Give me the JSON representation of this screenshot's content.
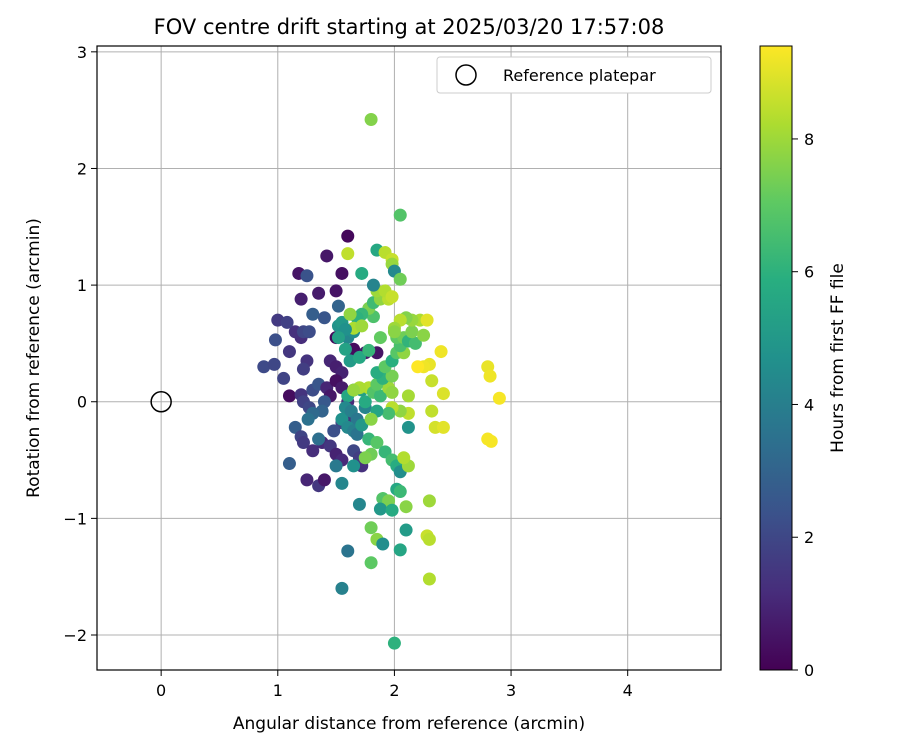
{
  "chart_data": {
    "type": "scatter",
    "title": "FOV centre drift starting at 2025/03/20 17:57:08",
    "xlabel": "Angular distance from reference (arcmin)",
    "ylabel": "Rotation from reference (arcmin)",
    "xlim": [
      -0.55,
      4.8
    ],
    "ylim": [
      -2.3,
      3.05
    ],
    "xticks": [
      0,
      1,
      2,
      3,
      4
    ],
    "yticks": [
      -2,
      -1,
      0,
      1,
      2,
      3
    ],
    "grid": true,
    "legend": {
      "position": "top-right",
      "entries": [
        "Reference platepar"
      ]
    },
    "reference_point": {
      "label": "Reference platepar",
      "x": 0,
      "y": 0
    },
    "colorbar": {
      "label": "Hours from first FF file",
      "range": [
        0,
        9.4
      ],
      "ticks": [
        0,
        2,
        4,
        6,
        8
      ],
      "colormap": "viridis"
    },
    "points": [
      [
        1.6,
        1.42,
        0.2
      ],
      [
        1.42,
        1.25,
        0.6
      ],
      [
        1.55,
        1.1,
        0.4
      ],
      [
        1.18,
        1.1,
        0.5
      ],
      [
        1.2,
        0.88,
        0.8
      ],
      [
        1.35,
        0.93,
        0.7
      ],
      [
        1.5,
        0.95,
        0.5
      ],
      [
        1.25,
        1.08,
        2.4
      ],
      [
        1.55,
        0.65,
        0.4
      ],
      [
        1.5,
        0.55,
        0.2
      ],
      [
        1.65,
        0.45,
        0.3
      ],
      [
        1.2,
        0.55,
        1.2
      ],
      [
        1.1,
        0.43,
        1.5
      ],
      [
        1.15,
        0.6,
        1.3
      ],
      [
        1.0,
        0.7,
        1.6
      ],
      [
        1.08,
        0.68,
        1.8
      ],
      [
        1.22,
        0.6,
        2.0
      ],
      [
        1.27,
        0.6,
        2.2
      ],
      [
        0.98,
        0.53,
        2.3
      ],
      [
        1.4,
        0.72,
        2.5
      ],
      [
        1.3,
        0.75,
        2.8
      ],
      [
        1.52,
        0.82,
        3.0
      ],
      [
        0.88,
        0.3,
        2.1
      ],
      [
        0.97,
        0.32,
        2.0
      ],
      [
        1.05,
        0.2,
        1.9
      ],
      [
        1.25,
        0.35,
        1.4
      ],
      [
        1.22,
        0.28,
        1.7
      ],
      [
        1.45,
        0.35,
        1.0
      ],
      [
        1.5,
        0.3,
        0.8
      ],
      [
        1.55,
        0.25,
        0.9
      ],
      [
        1.75,
        0.42,
        0.7
      ],
      [
        1.85,
        0.42,
        0.5
      ],
      [
        1.1,
        0.05,
        0.3
      ],
      [
        1.2,
        0.06,
        1.4
      ],
      [
        1.22,
        0.0,
        1.8
      ],
      [
        1.27,
        -0.05,
        2.0
      ],
      [
        1.3,
        0.1,
        2.2
      ],
      [
        1.35,
        0.15,
        2.5
      ],
      [
        1.42,
        0.12,
        1.0
      ],
      [
        1.45,
        0.05,
        0.6
      ],
      [
        1.5,
        0.18,
        0.4
      ],
      [
        1.55,
        0.12,
        0.7
      ],
      [
        1.6,
        0.0,
        1.1
      ],
      [
        1.62,
        -0.12,
        1.5
      ],
      [
        1.55,
        -0.18,
        1.9
      ],
      [
        1.48,
        -0.25,
        2.3
      ],
      [
        1.4,
        0.0,
        2.6
      ],
      [
        1.38,
        -0.08,
        3.0
      ],
      [
        1.3,
        -0.1,
        3.2
      ],
      [
        1.26,
        -0.15,
        3.5
      ],
      [
        1.15,
        -0.22,
        2.8
      ],
      [
        1.2,
        -0.3,
        1.9
      ],
      [
        1.22,
        -0.35,
        1.6
      ],
      [
        1.3,
        -0.42,
        1.2
      ],
      [
        1.38,
        -0.35,
        1.1
      ],
      [
        1.35,
        -0.32,
        3.4
      ],
      [
        1.45,
        -0.38,
        1.5
      ],
      [
        1.5,
        -0.45,
        0.9
      ],
      [
        1.55,
        -0.5,
        1.1
      ],
      [
        1.65,
        -0.42,
        2.0
      ],
      [
        1.7,
        -0.48,
        1.7
      ],
      [
        1.72,
        -0.55,
        1.3
      ],
      [
        1.1,
        -0.53,
        2.8
      ],
      [
        1.25,
        -0.67,
        1.0
      ],
      [
        1.35,
        -0.72,
        1.5
      ],
      [
        1.4,
        -0.67,
        0.6
      ],
      [
        1.5,
        -0.55,
        3.8
      ],
      [
        1.55,
        -0.7,
        4.3
      ],
      [
        1.65,
        -0.55,
        4.7
      ],
      [
        1.7,
        -0.88,
        4.3
      ],
      [
        1.6,
        -1.28,
        3.6
      ],
      [
        1.55,
        -1.6,
        4.1
      ],
      [
        1.52,
        0.65,
        4.8
      ],
      [
        1.55,
        0.68,
        5.0
      ],
      [
        1.6,
        0.55,
        4.3
      ],
      [
        1.65,
        0.6,
        4.6
      ],
      [
        1.58,
        0.45,
        5.4
      ],
      [
        1.62,
        0.35,
        5.1
      ],
      [
        1.7,
        0.38,
        5.6
      ],
      [
        1.78,
        0.44,
        6.2
      ],
      [
        1.65,
        0.1,
        5.2
      ],
      [
        1.6,
        0.05,
        5.6
      ],
      [
        1.58,
        -0.05,
        4.4
      ],
      [
        1.55,
        -0.15,
        4.7
      ],
      [
        1.63,
        -0.08,
        4.0
      ],
      [
        1.68,
        -0.15,
        3.7
      ],
      [
        1.75,
        -0.05,
        4.2
      ],
      [
        1.6,
        -0.22,
        4.4
      ],
      [
        1.65,
        -0.25,
        4.0
      ],
      [
        1.68,
        -0.28,
        3.6
      ],
      [
        1.72,
        -0.2,
        5.0
      ],
      [
        1.78,
        -0.32,
        6.2
      ],
      [
        1.85,
        -0.35,
        6.9
      ],
      [
        1.8,
        -0.45,
        7.3
      ],
      [
        1.75,
        -0.48,
        7.5
      ],
      [
        1.92,
        -0.43,
        6.2
      ],
      [
        1.98,
        -0.5,
        6.5
      ],
      [
        2.02,
        -0.55,
        5.8
      ],
      [
        2.05,
        -0.6,
        4.6
      ],
      [
        2.02,
        -0.75,
        5.6
      ],
      [
        2.05,
        -0.77,
        6.3
      ],
      [
        1.9,
        -0.83,
        6.8
      ],
      [
        1.95,
        -0.85,
        7.5
      ],
      [
        1.88,
        -0.92,
        5.0
      ],
      [
        1.98,
        -0.93,
        5.7
      ],
      [
        2.1,
        -0.9,
        7.7
      ],
      [
        2.1,
        -1.1,
        5.1
      ],
      [
        1.8,
        -1.08,
        7.3
      ],
      [
        1.85,
        -1.18,
        7.7
      ],
      [
        1.9,
        -1.22,
        4.6
      ],
      [
        2.05,
        -1.27,
        5.5
      ],
      [
        1.8,
        -1.38,
        7.0
      ],
      [
        2.0,
        -2.07,
        6.0
      ],
      [
        2.28,
        -1.15,
        8.6
      ],
      [
        2.3,
        -1.18,
        8.4
      ],
      [
        2.3,
        -1.52,
        8.3
      ],
      [
        2.3,
        -0.85,
        8.0
      ],
      [
        2.12,
        -0.55,
        8.0
      ],
      [
        2.08,
        -0.48,
        8.3
      ],
      [
        2.12,
        -0.22,
        4.8
      ],
      [
        2.12,
        -0.1,
        8.5
      ],
      [
        2.05,
        -0.08,
        7.8
      ],
      [
        1.98,
        -0.05,
        8.4
      ],
      [
        1.95,
        -0.1,
        6.5
      ],
      [
        1.85,
        -0.08,
        5.5
      ],
      [
        1.8,
        -0.15,
        7.7
      ],
      [
        1.75,
        0.0,
        5.7
      ],
      [
        1.72,
        0.1,
        5.3
      ],
      [
        1.78,
        0.12,
        8.3
      ],
      [
        1.7,
        0.12,
        8.2
      ],
      [
        1.65,
        0.1,
        7.9
      ],
      [
        1.82,
        0.08,
        6.8
      ],
      [
        1.88,
        0.05,
        6.3
      ],
      [
        1.95,
        0.12,
        8.0
      ],
      [
        1.98,
        0.08,
        7.8
      ],
      [
        2.12,
        0.05,
        8.1
      ],
      [
        1.85,
        0.15,
        7.0
      ],
      [
        1.9,
        0.2,
        6.0
      ],
      [
        1.85,
        0.25,
        5.8
      ],
      [
        1.98,
        0.22,
        7.4
      ],
      [
        1.92,
        0.3,
        7.0
      ],
      [
        1.98,
        0.35,
        5.9
      ],
      [
        2.02,
        0.42,
        6.9
      ],
      [
        2.08,
        0.42,
        7.8
      ],
      [
        2.05,
        0.48,
        6.6
      ],
      [
        2.02,
        0.55,
        7.0
      ],
      [
        2.08,
        0.55,
        7.3
      ],
      [
        2.12,
        0.52,
        6.1
      ],
      [
        2.18,
        0.5,
        6.5
      ],
      [
        2.15,
        0.6,
        7.5
      ],
      [
        2.25,
        0.57,
        7.7
      ],
      [
        2.22,
        0.7,
        8.2
      ],
      [
        2.28,
        0.7,
        9.0
      ],
      [
        2.15,
        0.7,
        7.9
      ],
      [
        2.1,
        0.72,
        7.6
      ],
      [
        2.05,
        0.7,
        8.4
      ],
      [
        2.0,
        0.63,
        8.0
      ],
      [
        2.0,
        0.6,
        7.7
      ],
      [
        1.88,
        0.55,
        7.1
      ],
      [
        1.82,
        0.73,
        6.7
      ],
      [
        1.78,
        0.8,
        7.5
      ],
      [
        1.72,
        0.75,
        6.2
      ],
      [
        1.68,
        0.72,
        6.0
      ],
      [
        1.62,
        0.75,
        7.8
      ],
      [
        1.65,
        0.63,
        8.2
      ],
      [
        1.72,
        0.65,
        8.0
      ],
      [
        1.58,
        0.62,
        4.7
      ],
      [
        1.52,
        0.55,
        5.3
      ],
      [
        1.82,
        0.85,
        6.4
      ],
      [
        1.88,
        0.88,
        7.8
      ],
      [
        1.95,
        0.88,
        8.4
      ],
      [
        1.85,
        0.95,
        8.0
      ],
      [
        1.92,
        0.95,
        8.3
      ],
      [
        1.98,
        0.9,
        8.6
      ],
      [
        1.72,
        1.1,
        5.7
      ],
      [
        1.82,
        1.0,
        4.2
      ],
      [
        1.85,
        1.3,
        5.6
      ],
      [
        1.92,
        1.28,
        8.4
      ],
      [
        1.98,
        1.22,
        8.6
      ],
      [
        1.98,
        1.18,
        7.9
      ],
      [
        2.0,
        1.12,
        4.4
      ],
      [
        2.05,
        1.05,
        7.3
      ],
      [
        1.6,
        1.27,
        8.5
      ],
      [
        2.05,
        1.6,
        6.8
      ],
      [
        1.8,
        2.42,
        7.6
      ],
      [
        2.32,
        0.18,
        8.6
      ],
      [
        2.3,
        0.32,
        9.1
      ],
      [
        2.25,
        0.3,
        9.2
      ],
      [
        2.2,
        0.3,
        9.4
      ],
      [
        2.4,
        0.43,
        9.2
      ],
      [
        2.42,
        0.07,
        8.9
      ],
      [
        2.32,
        -0.08,
        8.5
      ],
      [
        2.35,
        -0.22,
        8.8
      ],
      [
        2.42,
        -0.22,
        9.0
      ],
      [
        2.8,
        0.3,
        9.1
      ],
      [
        2.82,
        0.22,
        9.2
      ],
      [
        2.9,
        0.03,
        9.3
      ],
      [
        2.8,
        -0.32,
        9.3
      ],
      [
        2.83,
        -0.34,
        9.3
      ]
    ]
  }
}
